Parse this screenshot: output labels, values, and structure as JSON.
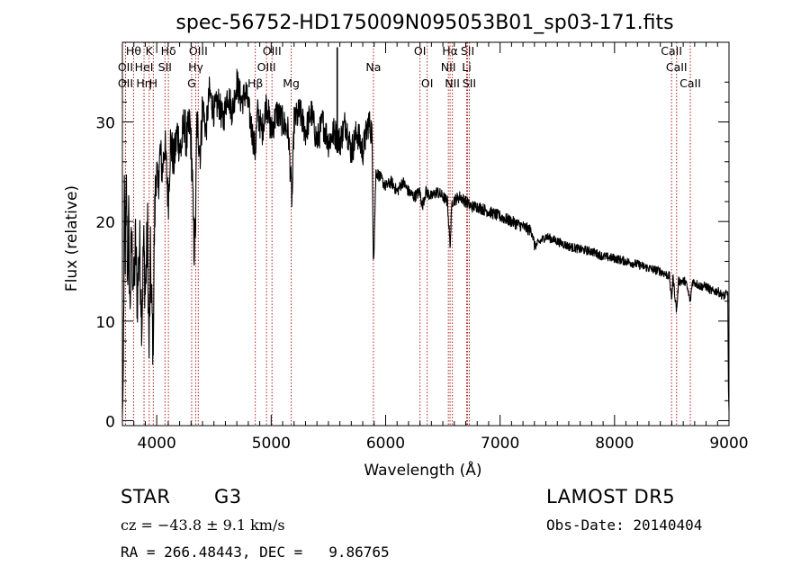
{
  "chart_data": {
    "type": "line",
    "title": "spec-56752-HD175009N095053B01_sp03-171.fits",
    "xlabel": "Wavelength (Å)",
    "ylabel": "Flux (relative)",
    "xlim": [
      3700,
      9000
    ],
    "ylim": [
      -0.5,
      38
    ],
    "xticks": [
      4000,
      5000,
      6000,
      7000,
      8000,
      9000
    ],
    "yticks": [
      0,
      10,
      20,
      30
    ],
    "grid": false,
    "line_color": "#000000",
    "marker_color": "#b22222",
    "series": [
      {
        "anchors": [
          [
            3700,
            0.5
          ],
          [
            3706,
            3
          ],
          [
            3712,
            12
          ],
          [
            3718,
            22
          ],
          [
            3725,
            17
          ],
          [
            3735,
            23
          ],
          [
            3745,
            14
          ],
          [
            3755,
            20
          ],
          [
            3765,
            11
          ],
          [
            3780,
            18
          ],
          [
            3800,
            13
          ],
          [
            3815,
            18
          ],
          [
            3830,
            12
          ],
          [
            3850,
            18
          ],
          [
            3870,
            10
          ],
          [
            3885,
            18
          ],
          [
            3900,
            13
          ],
          [
            3920,
            19
          ],
          [
            3933,
            6.5
          ],
          [
            3945,
            16
          ],
          [
            3955,
            12
          ],
          [
            3968,
            7.5
          ],
          [
            3980,
            19
          ],
          [
            3995,
            26
          ],
          [
            4010,
            23
          ],
          [
            4030,
            27
          ],
          [
            4050,
            25
          ],
          [
            4070,
            28
          ],
          [
            4101,
            22
          ],
          [
            4120,
            28
          ],
          [
            4150,
            26
          ],
          [
            4180,
            29
          ],
          [
            4210,
            27
          ],
          [
            4240,
            30
          ],
          [
            4260,
            28
          ],
          [
            4290,
            30
          ],
          [
            4310,
            25
          ],
          [
            4326,
            17
          ],
          [
            4340,
            20
          ],
          [
            4350,
            30
          ],
          [
            4383,
            27
          ],
          [
            4400,
            32
          ],
          [
            4430,
            29
          ],
          [
            4460,
            33
          ],
          [
            4500,
            31
          ],
          [
            4540,
            32
          ],
          [
            4580,
            30
          ],
          [
            4620,
            33
          ],
          [
            4660,
            31
          ],
          [
            4700,
            34
          ],
          [
            4740,
            32
          ],
          [
            4780,
            33
          ],
          [
            4820,
            30
          ],
          [
            4861,
            27
          ],
          [
            4880,
            31
          ],
          [
            4920,
            29
          ],
          [
            4960,
            32
          ],
          [
            5000,
            29
          ],
          [
            5050,
            31
          ],
          [
            5100,
            30
          ],
          [
            5150,
            29
          ],
          [
            5172,
            24
          ],
          [
            5183,
            22
          ],
          [
            5200,
            30
          ],
          [
            5250,
            31
          ],
          [
            5300,
            29
          ],
          [
            5350,
            31
          ],
          [
            5400,
            28
          ],
          [
            5450,
            30
          ],
          [
            5500,
            28
          ],
          [
            5550,
            29
          ],
          [
            5600,
            28
          ],
          [
            5650,
            30
          ],
          [
            5700,
            27
          ],
          [
            5750,
            29
          ],
          [
            5800,
            27
          ],
          [
            5850,
            30
          ],
          [
            5880,
            29
          ],
          [
            5893,
            17
          ],
          [
            5900,
            18
          ],
          [
            5915,
            25
          ],
          [
            5950,
            24.5
          ],
          [
            6000,
            23.5
          ],
          [
            6050,
            24
          ],
          [
            6100,
            23
          ],
          [
            6150,
            24
          ],
          [
            6200,
            23
          ],
          [
            6250,
            22.5
          ],
          [
            6300,
            23
          ],
          [
            6320,
            21.5
          ],
          [
            6350,
            23
          ],
          [
            6400,
            22.5
          ],
          [
            6450,
            23
          ],
          [
            6500,
            22.5
          ],
          [
            6540,
            22
          ],
          [
            6563,
            17.5
          ],
          [
            6580,
            22
          ],
          [
            6650,
            22.5
          ],
          [
            6700,
            22
          ],
          [
            6750,
            21.5
          ],
          [
            6800,
            21.5
          ],
          [
            6900,
            21
          ],
          [
            7000,
            20.5
          ],
          [
            7100,
            20
          ],
          [
            7200,
            19.5
          ],
          [
            7280,
            19
          ],
          [
            7300,
            17.5
          ],
          [
            7400,
            18.5
          ],
          [
            7500,
            18
          ],
          [
            7600,
            17.5
          ],
          [
            7700,
            17.2
          ],
          [
            7800,
            17
          ],
          [
            7900,
            16.5
          ],
          [
            8000,
            16.3
          ],
          [
            8100,
            16
          ],
          [
            8200,
            15.7
          ],
          [
            8300,
            15.3
          ],
          [
            8400,
            15
          ],
          [
            8480,
            14.5
          ],
          [
            8498,
            12
          ],
          [
            8510,
            14.5
          ],
          [
            8542,
            11
          ],
          [
            8560,
            14
          ],
          [
            8620,
            14
          ],
          [
            8662,
            12
          ],
          [
            8680,
            14
          ],
          [
            8750,
            13.5
          ],
          [
            8800,
            13.5
          ],
          [
            8850,
            13
          ],
          [
            8900,
            13
          ],
          [
            8950,
            12.5
          ],
          [
            8990,
            12.8
          ],
          [
            8995,
            3
          ],
          [
            9000,
            1
          ]
        ]
      }
    ],
    "spike": {
      "x": 5577,
      "y_bottom": 28.5,
      "y_top": 37.5
    },
    "line_markers": [
      {
        "x": 3798,
        "label": "Hθ",
        "row": 0
      },
      {
        "x": 3727,
        "label": "OII",
        "row": 1
      },
      {
        "x": 3727,
        "label": "OII",
        "row": 2
      },
      {
        "x": 3889,
        "label": "Hη",
        "row": 2
      },
      {
        "x": 3934,
        "label": "K",
        "row": 0
      },
      {
        "x": 3970,
        "label": "H",
        "row": 2
      },
      {
        "x": 3889,
        "label": "HeI",
        "row": 1
      },
      {
        "x": 4102,
        "label": "Hδ",
        "row": 0
      },
      {
        "x": 4072,
        "label": "SII",
        "row": 1
      },
      {
        "x": 4363,
        "label": "OIII",
        "row": 0
      },
      {
        "x": 4341,
        "label": "Hγ",
        "row": 1
      },
      {
        "x": 4305,
        "label": "G",
        "row": 2
      },
      {
        "x": 4861,
        "label": "Hβ",
        "row": 2
      },
      {
        "x": 5007,
        "label": "OIII",
        "row": 0
      },
      {
        "x": 4959,
        "label": "OIII",
        "row": 1
      },
      {
        "x": 5175,
        "label": "Mg",
        "row": 2
      },
      {
        "x": 5893,
        "label": "Na",
        "row": 1
      },
      {
        "x": 6300,
        "label": "OI",
        "row": 0
      },
      {
        "x": 6363,
        "label": "OI",
        "row": 2
      },
      {
        "x": 6563,
        "label": "Hα",
        "row": 0
      },
      {
        "x": 6548,
        "label": "NII",
        "row": 1
      },
      {
        "x": 6583,
        "label": "NII",
        "row": 2
      },
      {
        "x": 6716,
        "label": "SII",
        "row": 0
      },
      {
        "x": 6708,
        "label": "Li",
        "row": 1
      },
      {
        "x": 6731,
        "label": "SII",
        "row": 2
      },
      {
        "x": 8498,
        "label": "CaII",
        "row": 0
      },
      {
        "x": 8542,
        "label": "CaII",
        "row": 1
      },
      {
        "x": 8662,
        "label": "CaII",
        "row": 2
      }
    ]
  },
  "info": {
    "class_label": "STAR",
    "subclass": "G3",
    "survey": "LAMOST DR5",
    "cz": "cz = −43.8 ± 9.1 km/s",
    "obs_date": "Obs-Date: 20140404",
    "coords": "RA = 266.48443, DEC =   9.86765"
  }
}
